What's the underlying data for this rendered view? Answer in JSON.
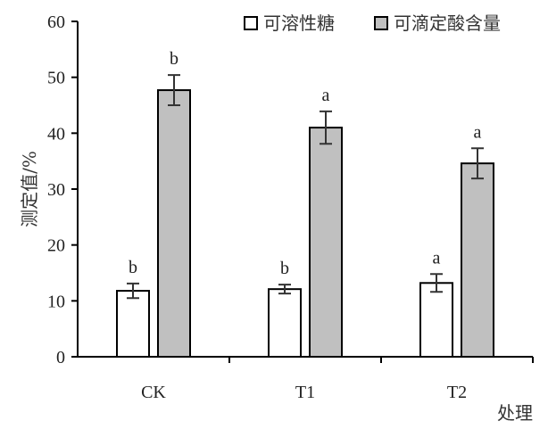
{
  "chart_data": {
    "type": "bar",
    "title": "",
    "xlabel": "处理",
    "ylabel": "测定值/%",
    "ylim": [
      0,
      60
    ],
    "yticks": [
      0,
      10,
      20,
      30,
      40,
      50,
      60
    ],
    "categories": [
      "CK",
      "T1",
      "T2"
    ],
    "legend_position": "top-right",
    "series": [
      {
        "name": "可溶性糖",
        "color": "#ffffff",
        "values": [
          11.8,
          12.1,
          13.2
        ],
        "errors": [
          1.3,
          0.8,
          1.6
        ],
        "labels": [
          "b",
          "b",
          "a"
        ]
      },
      {
        "name": "可滴定酸含量",
        "color": "#c0c0c0",
        "values": [
          47.7,
          41.0,
          34.6
        ],
        "errors": [
          2.7,
          2.9,
          2.7
        ],
        "labels": [
          "b",
          "a",
          "a"
        ]
      }
    ]
  }
}
